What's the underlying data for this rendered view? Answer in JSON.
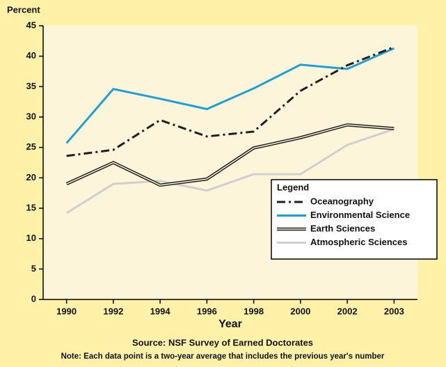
{
  "chart_data": {
    "type": "line",
    "y_label": "Percent",
    "x_label": "Year",
    "source": "Source: NSF Survey of Earned Doctorates",
    "note": "Note:  Each data point is a two-year average that includes the previous year's number",
    "categories": [
      "1990",
      "1992",
      "1994",
      "1996",
      "1998",
      "2000",
      "2002",
      "2003"
    ],
    "ylim": [
      0,
      45
    ],
    "yticks": [
      0,
      5,
      10,
      15,
      20,
      25,
      30,
      35,
      40,
      45
    ],
    "legend_title": "Legend",
    "legend": "right",
    "series": [
      {
        "name": "Oceanography",
        "color": "#231f20",
        "line_style": "dash-dot",
        "values": [
          23.6,
          24.6,
          29.5,
          26.8,
          27.6,
          34.3,
          38.5,
          41.5
        ]
      },
      {
        "name": "Environmental Science",
        "color": "#1ba1d8",
        "line_style": "solid",
        "values": [
          25.7,
          34.6,
          33.0,
          31.3,
          34.7,
          38.6,
          37.9,
          41.3
        ]
      },
      {
        "name": "Earth Sciences",
        "color": "#231f20",
        "line_style": "double",
        "values": [
          19.0,
          22.5,
          18.8,
          19.8,
          24.9,
          26.6,
          28.7,
          28.1
        ]
      },
      {
        "name": "Atmospheric Sciences",
        "color": "#cfcfcf",
        "line_style": "solid",
        "values": [
          14.2,
          19.0,
          19.5,
          17.9,
          20.6,
          20.6,
          25.4,
          28.0
        ]
      }
    ]
  }
}
